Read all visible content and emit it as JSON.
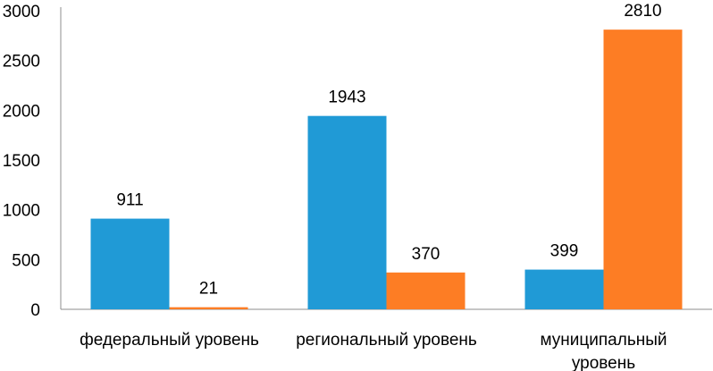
{
  "chart_data": {
    "type": "bar",
    "categories": [
      [
        "федеральный уровень"
      ],
      [
        "региональный уровень"
      ],
      [
        "муниципальный",
        "уровень"
      ]
    ],
    "series": [
      {
        "values": [
          911,
          1943,
          399
        ],
        "color": "#209ad6"
      },
      {
        "values": [
          21,
          370,
          2810
        ],
        "color": "#fd7d24"
      }
    ],
    "data_labels": [
      [
        "911",
        "1943",
        "399"
      ],
      [
        "21",
        "370",
        "2810"
      ]
    ],
    "yticks": [
      "0",
      "500",
      "1000",
      "1500",
      "2000",
      "2500",
      "3000"
    ],
    "ylim": [
      0,
      3000
    ],
    "grid": false,
    "legend": "none"
  }
}
